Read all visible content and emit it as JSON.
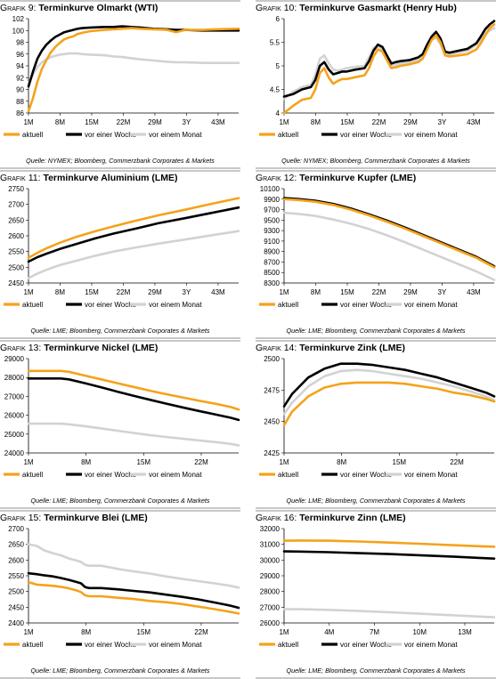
{
  "series_colors": {
    "aktuell": "#F5A21B",
    "vor einer Woche": "#000000",
    "vor einem Monat": "#D2D2D2"
  },
  "panels": [
    {
      "prefix": "Grafik 9:",
      "title": "Terminkurve Olmarkt (WTI)",
      "source": "Quelle: NYMEX; Bloomberg, Commerzbank Corporates & Markets",
      "chart_data": {
        "type": "line",
        "x_tick_labels": [
          "1M",
          "8M",
          "15M",
          "22M",
          "29M",
          "3Y",
          "43M"
        ],
        "x": [
          1,
          2,
          3,
          4,
          5,
          6,
          7,
          8,
          9,
          10,
          11,
          12,
          13,
          15,
          18,
          20,
          22,
          24,
          26,
          29,
          32,
          34,
          36,
          40,
          43,
          48
        ],
        "xlim": [
          1,
          48
        ],
        "ylim": [
          86,
          102
        ],
        "y_ticks": [
          86,
          88,
          90,
          92,
          94,
          96,
          98,
          100,
          102
        ],
        "series": [
          {
            "name": "aktuell",
            "values": [
              86.3,
              88.5,
              91.3,
              93.5,
              95.0,
              96.3,
              97.2,
              97.9,
              98.5,
              98.8,
              99.0,
              99.4,
              99.6,
              99.9,
              100.1,
              100.2,
              100.3,
              100.4,
              100.3,
              100.2,
              100.1,
              99.7,
              100.1,
              100.1,
              100.2,
              100.3
            ]
          },
          {
            "name": "vor einer Woche",
            "values": [
              90.5,
              93.0,
              95.2,
              96.6,
              97.6,
              98.3,
              98.9,
              99.3,
              99.7,
              99.9,
              100.1,
              100.3,
              100.4,
              100.5,
              100.6,
              100.6,
              100.7,
              100.6,
              100.5,
              100.3,
              100.2,
              100.1,
              100.1,
              100.0,
              100.0,
              100.0
            ]
          },
          {
            "name": "vor einem Monat",
            "values": [
              91.0,
              92.6,
              93.8,
              94.6,
              95.1,
              95.5,
              95.7,
              95.9,
              96.0,
              96.1,
              96.1,
              96.1,
              96.0,
              95.9,
              95.8,
              95.6,
              95.5,
              95.3,
              95.1,
              94.9,
              94.7,
              94.6,
              94.6,
              94.5,
              94.5,
              94.5
            ]
          }
        ]
      }
    },
    {
      "prefix": "Grafik 10:",
      "title": "Terminkurve Gasmarkt (Henry Hub)",
      "source": "Quelle: NYMEX; Bloomberg, Commerzbank Corporates & Markets",
      "chart_data": {
        "type": "line",
        "x_tick_labels": [
          "1M",
          "8M",
          "15M",
          "22M",
          "29M",
          "3Y",
          "43M"
        ],
        "x": [
          1,
          3,
          5,
          7,
          8,
          9,
          10,
          11,
          12,
          13,
          14,
          15,
          17,
          19,
          20,
          21,
          22,
          23,
          24,
          25,
          26,
          27,
          29,
          31,
          32,
          33,
          34,
          35,
          36,
          37,
          38,
          40,
          42,
          43,
          44,
          45,
          46,
          47,
          48
        ],
        "xlim": [
          1,
          48
        ],
        "ylim": [
          4.0,
          6.0
        ],
        "y_ticks": [
          4.0,
          4.5,
          5.0,
          5.5,
          6.0
        ],
        "series": [
          {
            "name": "aktuell",
            "values": [
              4.0,
              4.15,
              4.28,
              4.32,
              4.5,
              4.85,
              4.95,
              4.75,
              4.62,
              4.68,
              4.72,
              4.72,
              4.76,
              4.8,
              4.95,
              5.2,
              5.35,
              5.3,
              5.12,
              4.95,
              4.97,
              5.0,
              5.03,
              5.08,
              5.15,
              5.35,
              5.55,
              5.65,
              5.5,
              5.22,
              5.2,
              5.22,
              5.25,
              5.3,
              5.35,
              5.48,
              5.65,
              5.8,
              5.88
            ]
          },
          {
            "name": "vor einer Woche",
            "values": [
              4.35,
              4.4,
              4.5,
              4.55,
              4.7,
              5.0,
              5.08,
              4.92,
              4.82,
              4.85,
              4.88,
              4.88,
              4.92,
              4.95,
              5.1,
              5.32,
              5.45,
              5.4,
              5.22,
              5.05,
              5.08,
              5.1,
              5.12,
              5.18,
              5.25,
              5.45,
              5.62,
              5.72,
              5.58,
              5.3,
              5.28,
              5.32,
              5.36,
              5.42,
              5.48,
              5.62,
              5.78,
              5.88,
              5.95
            ]
          },
          {
            "name": "vor einem Monat",
            "values": [
              4.3,
              4.45,
              4.55,
              4.6,
              4.8,
              5.15,
              5.22,
              5.05,
              4.92,
              4.9,
              4.92,
              4.95,
              4.98,
              5.0,
              5.18,
              5.38,
              5.42,
              5.35,
              5.15,
              5.0,
              5.02,
              5.05,
              5.08,
              5.12,
              5.2,
              5.38,
              5.55,
              5.6,
              5.45,
              5.25,
              5.25,
              5.28,
              5.32,
              5.38,
              5.45,
              5.55,
              5.68,
              5.75,
              5.8
            ]
          }
        ]
      }
    },
    {
      "prefix": "Grafik 11:",
      "title": "Terminkurve Aluminium (LME)",
      "source": "Quelle: LME; Bloomberg, Commerzbank Corporates & Markets",
      "chart_data": {
        "type": "line",
        "x_tick_labels": [
          "1M",
          "8M",
          "15M",
          "22M",
          "29M",
          "3Y",
          "43M"
        ],
        "x": [
          1,
          2,
          3,
          5,
          8,
          12,
          16,
          20,
          25,
          30,
          36,
          42,
          48
        ],
        "xlim": [
          1,
          48
        ],
        "ylim": [
          2450,
          2750
        ],
        "y_ticks": [
          2450,
          2500,
          2550,
          2600,
          2650,
          2700,
          2750
        ],
        "series": [
          {
            "name": "aktuell",
            "values": [
              2530,
              2538,
              2546,
              2560,
              2578,
              2598,
              2615,
              2630,
              2648,
              2665,
              2683,
              2702,
              2720
            ]
          },
          {
            "name": "vor einer Woche",
            "values": [
              2518,
              2525,
              2532,
              2543,
              2558,
              2575,
              2592,
              2607,
              2623,
              2640,
              2656,
              2673,
              2690
            ]
          },
          {
            "name": "vor einem Monat",
            "values": [
              2465,
              2473,
              2480,
              2492,
              2507,
              2522,
              2537,
              2550,
              2563,
              2575,
              2588,
              2602,
              2615
            ]
          }
        ]
      }
    },
    {
      "prefix": "Grafik 12:",
      "title": "Terminkurve Kupfer (LME)",
      "source": "Quelle: LME; Bloomberg, Commerzbank Corporates & Markets",
      "chart_data": {
        "type": "line",
        "x_tick_labels": [
          "1M",
          "8M",
          "15M",
          "22M",
          "29M",
          "3Y",
          "43M"
        ],
        "x": [
          1,
          4,
          8,
          12,
          16,
          20,
          24,
          28,
          32,
          36,
          40,
          44,
          48
        ],
        "xlim": [
          1,
          48
        ],
        "ylim": [
          8300,
          10100
        ],
        "y_ticks": [
          8300,
          8500,
          8700,
          8900,
          9100,
          9300,
          9500,
          9700,
          9900,
          10100
        ],
        "series": [
          {
            "name": "aktuell",
            "values": [
              9900,
              9885,
              9850,
              9790,
              9700,
              9590,
              9470,
              9340,
              9200,
              9060,
              8920,
              8780,
              8600
            ]
          },
          {
            "name": "vor einer Woche",
            "values": [
              9920,
              9905,
              9870,
              9810,
              9720,
              9610,
              9490,
              9360,
              9220,
              9080,
              8940,
              8800,
              8620
            ]
          },
          {
            "name": "vor einem Monat",
            "values": [
              9640,
              9620,
              9580,
              9510,
              9430,
              9330,
              9210,
              9080,
              8940,
              8800,
              8660,
              8520,
              8360
            ]
          }
        ]
      }
    },
    {
      "prefix": "Grafik 13:",
      "title": "Terminkurve Nickel (LME)",
      "source": "Quelle: LME; Bloomberg, Commerzbank Corporates & Markets",
      "chart_data": {
        "type": "line",
        "x_tick_labels": [
          "1M",
          "8M",
          "15M",
          "22M"
        ],
        "x": [
          1,
          3,
          5,
          6,
          8,
          10,
          12,
          14,
          16,
          18,
          20,
          22,
          24,
          26,
          27
        ],
        "xlim": [
          1,
          27
        ],
        "ylim": [
          24000,
          29000
        ],
        "y_ticks": [
          24000,
          25000,
          26000,
          27000,
          28000,
          29000
        ],
        "series": [
          {
            "name": "aktuell",
            "values": [
              28350,
              28350,
              28350,
              28300,
              28100,
              27900,
              27700,
              27500,
              27300,
              27120,
              26950,
              26780,
              26620,
              26440,
              26300
            ]
          },
          {
            "name": "vor einer Woche",
            "values": [
              27950,
              27950,
              27950,
              27900,
              27700,
              27480,
              27250,
              27030,
              26820,
              26620,
              26420,
              26230,
              26050,
              25870,
              25750
            ]
          },
          {
            "name": "vor einem Monat",
            "values": [
              25550,
              25550,
              25550,
              25520,
              25420,
              25300,
              25180,
              25060,
              24950,
              24850,
              24760,
              24670,
              24580,
              24480,
              24400
            ]
          }
        ]
      }
    },
    {
      "prefix": "Grafik 14:",
      "title": "Terminkurve Zink (LME)",
      "source": "Quelle: LME; Bloomberg, Commerzbank Corporates & Markets",
      "chart_data": {
        "type": "line",
        "x_tick_labels": [
          "1M",
          "8M",
          "15M",
          "22M"
        ],
        "x": [
          1,
          2,
          4,
          6,
          8,
          10,
          12,
          14,
          16,
          18,
          20,
          22,
          24,
          26,
          27
        ],
        "xlim": [
          1,
          27
        ],
        "ylim": [
          2425,
          2500
        ],
        "y_ticks": [
          2425,
          2450,
          2475,
          2500
        ],
        "series": [
          {
            "name": "aktuell",
            "values": [
              2447,
              2458,
              2470,
              2477,
              2480,
              2481,
              2481,
              2481,
              2480,
              2478,
              2476,
              2473,
              2471,
              2468,
              2466
            ]
          },
          {
            "name": "vor einer Woche",
            "values": [
              2462,
              2472,
              2485,
              2492,
              2496,
              2496,
              2495,
              2493,
              2491,
              2488,
              2485,
              2481,
              2477,
              2473,
              2470
            ]
          },
          {
            "name": "vor einem Monat",
            "values": [
              2456,
              2465,
              2478,
              2486,
              2490,
              2491,
              2490,
              2488,
              2486,
              2484,
              2481,
              2478,
              2474,
              2470,
              2467
            ]
          }
        ]
      }
    },
    {
      "prefix": "Grafik 15:",
      "title": "Terminkurve Blei (LME)",
      "source": "Quelle: LME; Bloomberg, Commerzbank Corporates & Markets",
      "chart_data": {
        "type": "line",
        "x_tick_labels": [
          "1M",
          "8M",
          "15M",
          "22M"
        ],
        "x": [
          1,
          2,
          3,
          4,
          5,
          6,
          7,
          7.5,
          8,
          8.5,
          10,
          12,
          14,
          16,
          18,
          20,
          22,
          24,
          26,
          27
        ],
        "xlim": [
          1,
          27
        ],
        "ylim": [
          2400,
          2700
        ],
        "y_ticks": [
          2400,
          2450,
          2500,
          2550,
          2600,
          2650,
          2700
        ],
        "series": [
          {
            "name": "aktuell",
            "values": [
              2530,
              2522,
              2520,
              2518,
              2515,
              2510,
              2503,
              2498,
              2488,
              2485,
              2485,
              2480,
              2476,
              2470,
              2466,
              2460,
              2452,
              2444,
              2435,
              2430
            ]
          },
          {
            "name": "vor einer Woche",
            "values": [
              2558,
              2555,
              2551,
              2548,
              2543,
              2537,
              2530,
              2526,
              2514,
              2511,
              2511,
              2507,
              2502,
              2497,
              2490,
              2483,
              2475,
              2465,
              2455,
              2448
            ]
          },
          {
            "name": "vor einem Monat",
            "values": [
              2650,
              2645,
              2630,
              2622,
              2615,
              2605,
              2598,
              2594,
              2585,
              2582,
              2582,
              2572,
              2564,
              2557,
              2548,
              2540,
              2533,
              2526,
              2518,
              2512
            ]
          }
        ]
      }
    },
    {
      "prefix": "Grafik 16:",
      "title": "Terminkurve Zinn (LME)",
      "source": "Quelle: LME; Bloomberg, Commerzbank Corporates & Markets",
      "chart_data": {
        "type": "line",
        "x_tick_labels": [
          "1M",
          "4M",
          "7M",
          "10M",
          "13M"
        ],
        "x": [
          1,
          2,
          4,
          6,
          8,
          10,
          12,
          14,
          15
        ],
        "xlim": [
          1,
          15
        ],
        "ylim": [
          26000,
          32000
        ],
        "y_ticks": [
          26000,
          27000,
          28000,
          29000,
          30000,
          31000,
          32000
        ],
        "series": [
          {
            "name": "aktuell",
            "values": [
              31230,
              31240,
              31230,
              31180,
              31110,
              31040,
              30960,
              30880,
              30850
            ]
          },
          {
            "name": "vor einer Woche",
            "values": [
              30550,
              30540,
              30500,
              30440,
              30380,
              30310,
              30230,
              30140,
              30090
            ]
          },
          {
            "name": "vor einem Monat",
            "values": [
              26880,
              26870,
              26830,
              26760,
              26680,
              26590,
              26500,
              26410,
              26360
            ]
          }
        ]
      }
    }
  ]
}
